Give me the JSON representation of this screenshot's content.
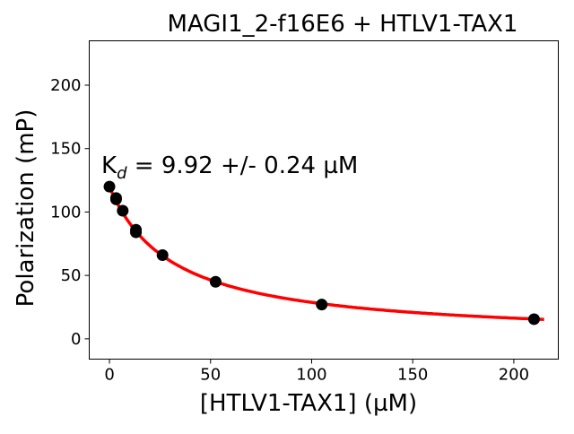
{
  "chart_data": {
    "type": "scatter",
    "title": "MAGI1_2-f16E6 + HTLV1-TAX1",
    "xlabel": "[HTLV1-TAX1] (µM)",
    "ylabel": "Polarization (mP)",
    "annotation": {
      "prefix": "K",
      "subscript": "d",
      "text": " = 9.92 +/- 0.24 µM"
    },
    "xlim": [
      -10,
      222
    ],
    "ylim": [
      -16,
      235
    ],
    "xticks": [
      0,
      50,
      100,
      150,
      200
    ],
    "yticks": [
      0,
      50,
      100,
      150,
      200
    ],
    "grid": false,
    "series": [
      {
        "type": "scatter",
        "color": "#000000",
        "x": [
          0,
          3.28,
          3.28,
          6.56,
          13.1,
          13.1,
          26.25,
          52.5,
          105,
          210
        ],
        "y": [
          120,
          111,
          110,
          101,
          86,
          84,
          66,
          45,
          27,
          15.5
        ]
      },
      {
        "type": "line",
        "color": "#ff0000",
        "x_range": [
          0,
          215
        ]
      }
    ]
  }
}
